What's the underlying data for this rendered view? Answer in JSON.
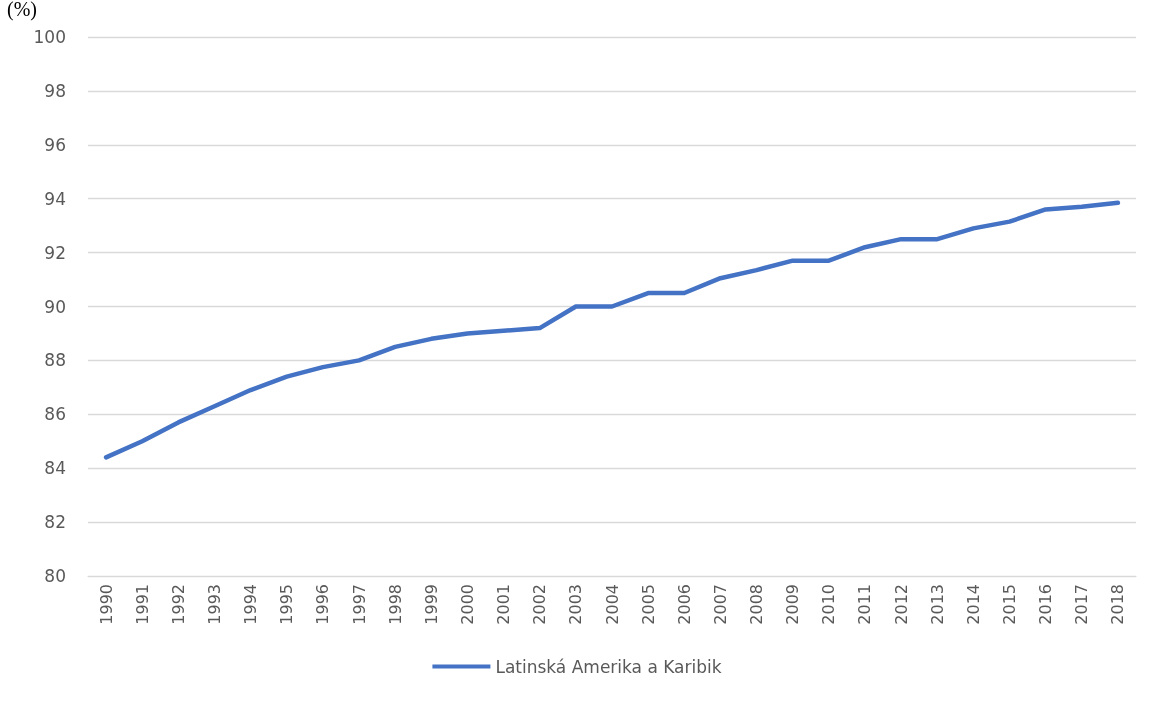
{
  "chart_data": {
    "type": "line",
    "ylabel": "(%)",
    "categories": [
      "1990",
      "1991",
      "1992",
      "1993",
      "1994",
      "1995",
      "1996",
      "1997",
      "1998",
      "1999",
      "2000",
      "2001",
      "2002",
      "2003",
      "2004",
      "2005",
      "2006",
      "2007",
      "2008",
      "2009",
      "2010",
      "2011",
      "2012",
      "2013",
      "2014",
      "2015",
      "2016",
      "2017",
      "2018"
    ],
    "series": [
      {
        "name": "Latinská Amerika a Karibik",
        "color": "#4472c4",
        "values": [
          84.4,
          85.0,
          85.7,
          86.3,
          86.9,
          87.4,
          87.75,
          88.0,
          88.5,
          88.8,
          89.0,
          89.1,
          89.2,
          90.0,
          90.0,
          90.5,
          90.5,
          91.05,
          91.35,
          91.7,
          91.7,
          92.2,
          92.5,
          92.5,
          92.9,
          93.15,
          93.6,
          93.7,
          93.85
        ]
      }
    ],
    "ylim": [
      80,
      100
    ],
    "yticks": [
      80,
      82,
      84,
      86,
      88,
      90,
      92,
      94,
      96,
      98,
      100
    ],
    "grid": "y",
    "legend": "bottom",
    "marker": "none",
    "line_style": "solid"
  }
}
